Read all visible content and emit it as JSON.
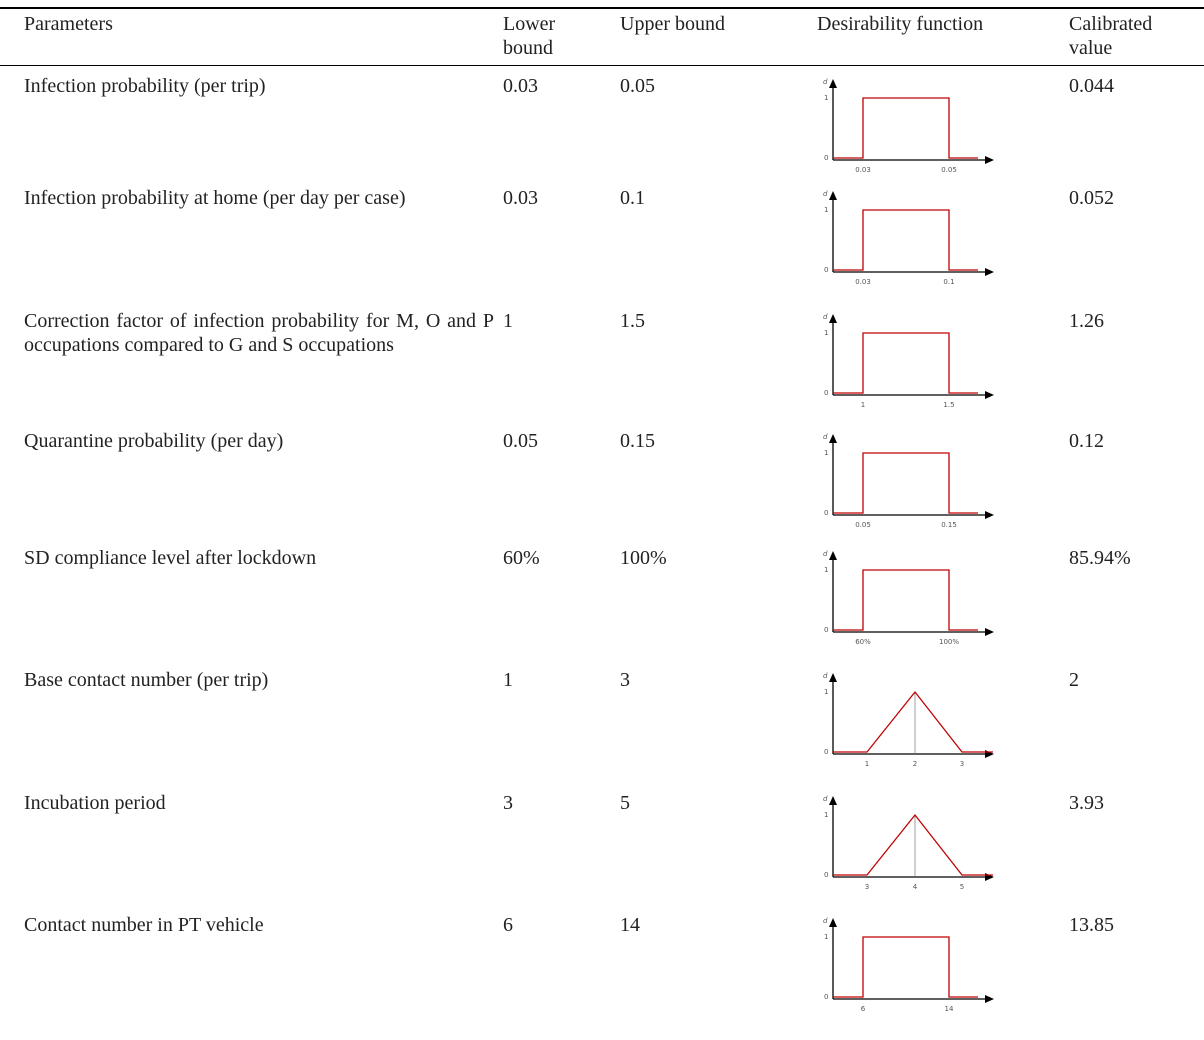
{
  "table": {
    "header": [
      "Parameters",
      "Lower bound",
      "Upper bound",
      "Desirability function",
      "Calibrated value"
    ],
    "diagram_axis": {
      "y_label": "d",
      "high": "1",
      "low": "0"
    },
    "rows": [
      {
        "parameter": "Infection probability (per trip)",
        "lower": "0.03",
        "upper": "0.05",
        "shape": "rectangle",
        "ticks": [
          "0.03",
          "0.05"
        ],
        "calibrated": "0.044"
      },
      {
        "parameter": "Infection probability at home (per day per case)",
        "lower": "0.03",
        "upper": "0.1",
        "shape": "rectangle",
        "ticks": [
          "0.03",
          "0.1"
        ],
        "calibrated": "0.052"
      },
      {
        "parameter": "Correction factor of infection probability for M, O and P occupations compared to G and S occupations",
        "lower": "1",
        "upper": "1.5",
        "shape": "rectangle",
        "ticks": [
          "1",
          "1.5"
        ],
        "calibrated": "1.26"
      },
      {
        "parameter": "Quarantine probability (per day)",
        "lower": "0.05",
        "upper": "0.15",
        "shape": "rectangle",
        "ticks": [
          "0.05",
          "0.15"
        ],
        "calibrated": "0.12"
      },
      {
        "parameter": "SD compliance level after lockdown",
        "lower": "60%",
        "upper": "100%",
        "shape": "rectangle",
        "ticks": [
          "60%",
          "100%"
        ],
        "calibrated": "85.94%"
      },
      {
        "parameter": "Base contact number (per trip)",
        "lower": "1",
        "upper": "3",
        "shape": "triangle",
        "ticks": [
          "1",
          "2",
          "3"
        ],
        "calibrated": "2"
      },
      {
        "parameter": "Incubation period",
        "lower": "3",
        "upper": "5",
        "shape": "triangle",
        "ticks": [
          "3",
          "4",
          "5"
        ],
        "calibrated": "3.93"
      },
      {
        "parameter": "Contact number in PT vehicle",
        "lower": "6",
        "upper": "14",
        "shape": "rectangle",
        "ticks": [
          "6",
          "14"
        ],
        "calibrated": "13.85"
      }
    ]
  }
}
